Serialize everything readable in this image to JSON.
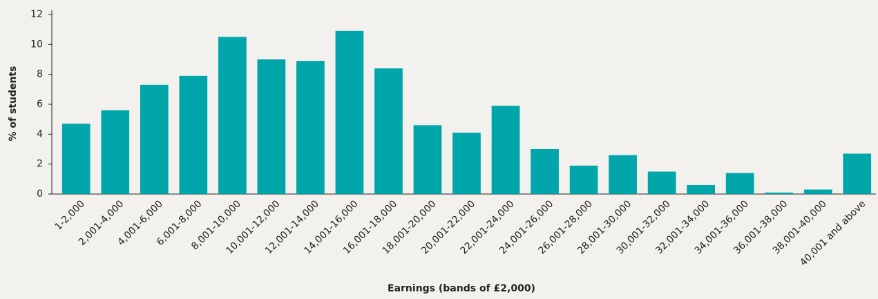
{
  "chart_data": {
    "type": "bar",
    "xlabel": "Earnings (bands of £2,000)",
    "ylabel": "% of students",
    "categories": [
      "1-2,000",
      "2,001-4,000",
      "4,001-6,000",
      "6,001-8,000",
      "8,001-10,000",
      "10,001-12,000",
      "12,001-14,000",
      "14,001-16,000",
      "16,001-18,000",
      "18,001-20,000",
      "20,001-22,000",
      "22,001-24,000",
      "24,001-26,000",
      "26,001-28,000",
      "28,001-30,000",
      "30,001-32,000",
      "32,001-34,000",
      "34,001-36,000",
      "36,001-38,000",
      "38,001-40,000",
      "40,001 and above"
    ],
    "values": [
      4.7,
      5.6,
      7.3,
      7.9,
      10.5,
      9.0,
      8.9,
      10.9,
      8.4,
      4.6,
      4.1,
      5.9,
      3.0,
      1.9,
      2.6,
      1.5,
      0.6,
      1.4,
      0.1,
      0.3,
      2.7
    ],
    "color": "#00a6a9",
    "ylim": [
      0,
      12
    ],
    "yticks": [
      0,
      2,
      4,
      6,
      8,
      10,
      12
    ],
    "grid": false
  }
}
